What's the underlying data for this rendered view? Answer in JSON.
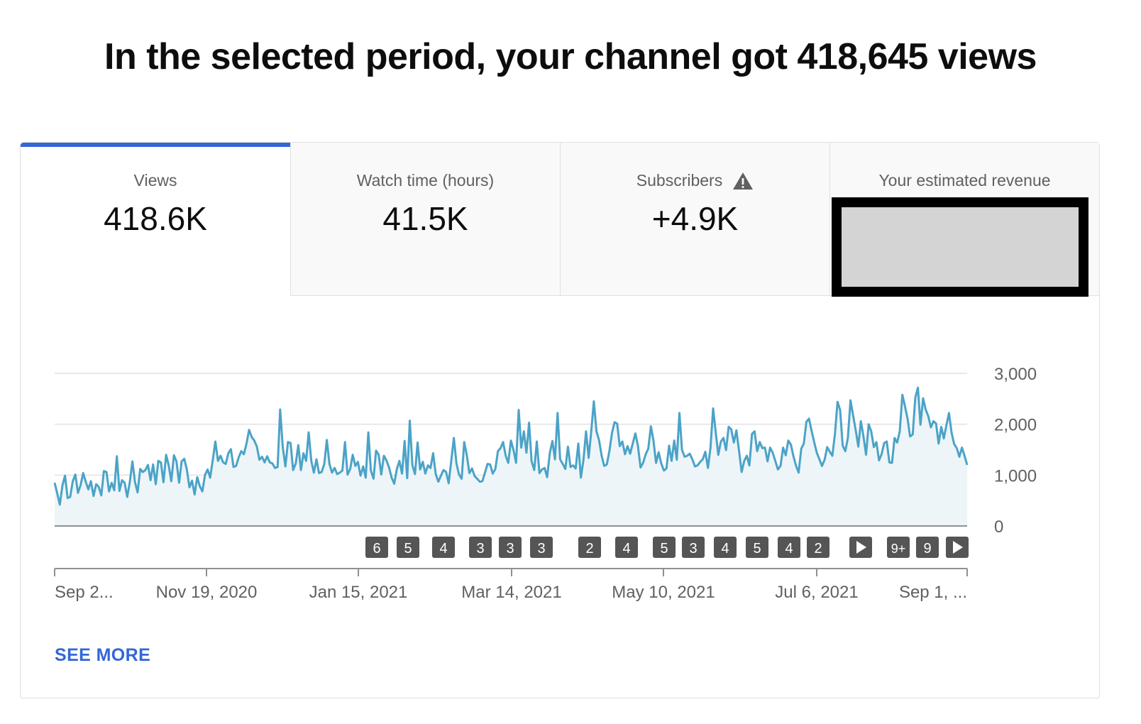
{
  "headline": "In the selected period, your channel got 418,645 views",
  "tabs": [
    {
      "label": "Views",
      "value": "418.6K",
      "active": true
    },
    {
      "label": "Watch time (hours)",
      "value": "41.5K",
      "active": false
    },
    {
      "label": "Subscribers",
      "value": "+4.9K",
      "active": false,
      "icon": "warning-icon"
    },
    {
      "label": "Your estimated revenue",
      "value": "",
      "active": false,
      "redacted": true
    }
  ],
  "colors": {
    "accent": "#3367d6",
    "line": "#4ba3c7",
    "fill": "#eef5f9",
    "marker": "#555555"
  },
  "chart_data": {
    "type": "line",
    "ylim": [
      0,
      3000
    ],
    "y_ticks": [
      "3,000",
      "2,000",
      "1,000",
      "0"
    ],
    "x_tick_labels": [
      "Sep 2...",
      "Nov 19, 2020",
      "Jan 15, 2021",
      "Mar 14, 2021",
      "May 10, 2021",
      "Jul 6, 2021",
      "Sep 1, ..."
    ],
    "x_range": [
      "2020-09-23",
      "2021-09-16"
    ],
    "series": [
      {
        "values": [
          850,
          640,
          420,
          800,
          990,
          550,
          570,
          880,
          1010,
          650,
          800,
          1040,
          870,
          720,
          880,
          590,
          820,
          770,
          600,
          1080,
          1060,
          680,
          850,
          700,
          1370,
          690,
          900,
          850,
          570,
          860,
          1270,
          860,
          660,
          1120,
          1060,
          1100,
          1200,
          900,
          1210,
          820,
          1280,
          1250,
          860,
          1400,
          1190,
          880,
          1390,
          1270,
          850,
          1270,
          1320,
          1110,
          760,
          890,
          620,
          960,
          780,
          680,
          1000,
          1110,
          950,
          1300,
          1660,
          1280,
          1380,
          1250,
          1220,
          1430,
          1510,
          1160,
          1180,
          1350,
          1470,
          1410,
          1620,
          1890,
          1750,
          1680,
          1560,
          1300,
          1360,
          1250,
          1370,
          1250,
          1230,
          1140,
          1160,
          2290,
          1550,
          1170,
          1650,
          1630,
          1100,
          1230,
          1590,
          1100,
          1430,
          1280,
          1840,
          1280,
          1050,
          1310,
          1040,
          1060,
          1220,
          1690,
          1220,
          1050,
          1140,
          1020,
          1050,
          1090,
          1650,
          1010,
          1120,
          1400,
          1180,
          1260,
          990,
          1170,
          950,
          1840,
          1090,
          930,
          1480,
          1400,
          1010,
          1380,
          1290,
          1150,
          950,
          830,
          1120,
          1280,
          1030,
          1670,
          940,
          2070,
          1190,
          1020,
          1640,
          1110,
          1260,
          1030,
          1190,
          1140,
          1430,
          1020,
          870,
          990,
          1100,
          1060,
          840,
          1290,
          1730,
          1230,
          1010,
          930,
          1650,
          1390,
          1040,
          1130,
          980,
          930,
          870,
          880,
          1050,
          1220,
          1210,
          1030,
          1120,
          1470,
          1530,
          1650,
          1380,
          1240,
          1680,
          1490,
          1240,
          2280,
          1540,
          1860,
          1440,
          2030,
          1270,
          1100,
          1660,
          1040,
          1110,
          1140,
          960,
          1430,
          1670,
          1310,
          2220,
          1310,
          1220,
          1120,
          1560,
          1160,
          1190,
          1130,
          1620,
          950,
          1300,
          1860,
          1340,
          1870,
          2450,
          1860,
          1690,
          1380,
          1180,
          1210,
          1470,
          1830,
          2040,
          2010,
          1570,
          1660,
          1410,
          1570,
          1420,
          1620,
          1820,
          1580,
          1150,
          1240,
          1410,
          1520,
          1960,
          1680,
          1240,
          1450,
          1230,
          1090,
          1130,
          1580,
          1280,
          1680,
          1300,
          2220,
          1500,
          1360,
          1380,
          1420,
          1310,
          1170,
          1190,
          1260,
          1310,
          1460,
          1140,
          1540,
          2310,
          1850,
          1400,
          1660,
          1730,
          1490,
          1950,
          1900,
          1640,
          1880,
          1480,
          1060,
          1280,
          1380,
          1190,
          1810,
          1860,
          1470,
          1650,
          1530,
          1540,
          1270,
          1540,
          1440,
          1280,
          1110,
          1180,
          1540,
          1390,
          1680,
          1600,
          1370,
          1180,
          1050,
          1520,
          1620,
          2050,
          2110,
          1870,
          1650,
          1440,
          1310,
          1180,
          1300,
          1550,
          1460,
          1380,
          1810,
          2440,
          2280,
          1580,
          1470,
          1730,
          2470,
          2170,
          1890,
          1560,
          2060,
          1760,
          1400,
          2000,
          1860,
          1550,
          1650,
          1290,
          1410,
          1630,
          1660,
          1250,
          1240,
          1730,
          1640,
          1860,
          2580,
          2360,
          2110,
          1760,
          1800,
          2520,
          2720,
          1990,
          2510,
          2290,
          2160,
          1940,
          2060,
          2010,
          1620,
          1950,
          1720,
          1980,
          2220,
          1830,
          1610,
          1530,
          1360,
          1540,
          1380,
          1200
        ]
      }
    ],
    "annotation_markers": [
      "6",
      "5",
      "4",
      "3",
      "3",
      "3",
      "2",
      "4",
      "5",
      "3",
      "4",
      "5",
      "4",
      "2",
      "",
      "9+",
      "9",
      ""
    ]
  },
  "see_more": "SEE MORE"
}
